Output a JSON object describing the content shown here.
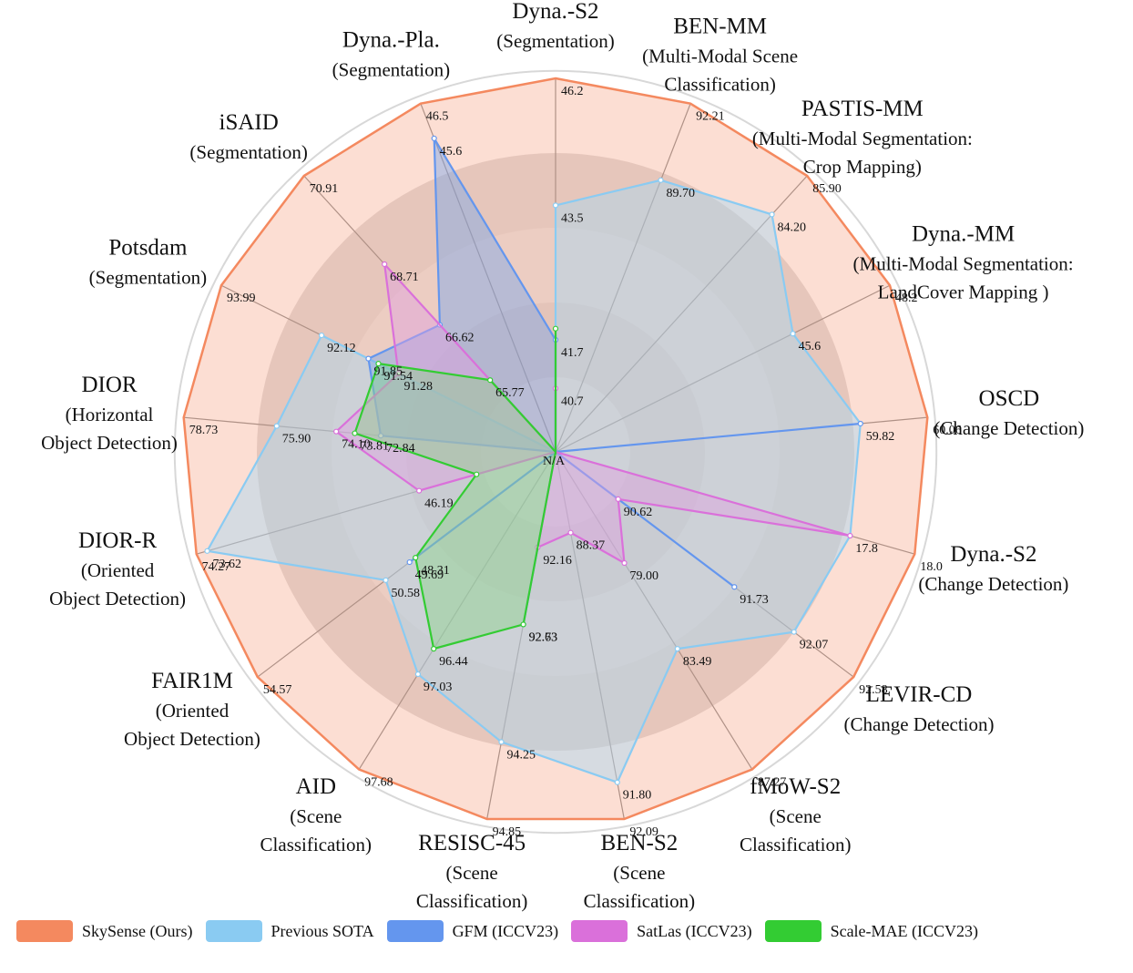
{
  "chart_data": {
    "type": "radar",
    "center_label": "N/A",
    "axes": [
      {
        "name": "Dyna.-S2",
        "task": "(Segmentation)"
      },
      {
        "name": "BEN-MM",
        "task": "(Multi-Modal Scene|Classification)"
      },
      {
        "name": "PASTIS-MM",
        "task": "(Multi-Modal Segmentation:|Crop Mapping)"
      },
      {
        "name": "Dyna.-MM",
        "task": "(Multi-Modal Segmentation:|LandCover Mapping )"
      },
      {
        "name": "OSCD",
        "task": "(Change Detection)"
      },
      {
        "name": "Dyna.-S2",
        "task": "(Change Detection)"
      },
      {
        "name": "LEVIR-CD",
        "task": "(Change Detection)"
      },
      {
        "name": "fMoW-S2",
        "task": "(Scene|Classification)"
      },
      {
        "name": "BEN-S2",
        "task": "(Scene|Classification)"
      },
      {
        "name": "RESISC-45",
        "task": "(Scene|Classification)"
      },
      {
        "name": "AID",
        "task": "(Scene|Classification)"
      },
      {
        "name": "FAIR1M",
        "task": "(Oriented|Object Detection)"
      },
      {
        "name": "DIOR-R",
        "task": "(Oriented|Object Detection)"
      },
      {
        "name": "DIOR",
        "task": "(Horizontal|Object Detection)"
      },
      {
        "name": "Potsdam",
        "task": "(Segmentation)"
      },
      {
        "name": "iSAID",
        "task": "(Segmentation)"
      },
      {
        "name": "Dyna.-Pla.",
        "task": "(Segmentation)"
      }
    ],
    "series": [
      {
        "name": "SkySense (Ours)",
        "color": "#F4895F",
        "fill": "#F9C3AE",
        "values": [
          "46.2",
          "92.21",
          "85.90",
          "48.2",
          "60.06",
          "18.0",
          "92.58",
          "87.27",
          "92.09",
          "94.85",
          "97.68",
          "54.57",
          "74.27",
          "78.73",
          "93.99",
          "70.91",
          "46.5"
        ],
        "r": [
          1,
          1,
          1,
          1,
          1,
          1,
          1,
          1,
          1,
          1,
          1,
          1,
          1,
          1,
          1,
          1,
          1
        ]
      },
      {
        "name": "Previous SOTA",
        "color": "#8ACBF2",
        "fill": "#A9D8F2",
        "values": [
          "43.5",
          "89.70",
          "84.20",
          "45.6",
          "59.82",
          "17.8",
          "92.07",
          "83.49",
          "91.80",
          "94.25",
          "97.03",
          "50.58",
          "73.62",
          "75.90",
          "92.12",
          "",
          ""
        ],
        "r": [
          0.66,
          0.78,
          0.86,
          0.71,
          0.82,
          0.82,
          0.8,
          0.62,
          0.9,
          0.79,
          0.7,
          0.57,
          0.97,
          0.75,
          0.7,
          0,
          0
        ]
      },
      {
        "name": "GFM (ICCV23)",
        "color": "#6496EE",
        "fill": "#7AA6EC",
        "values": [
          "41.7",
          "",
          "",
          "",
          "",
          "",
          "91.73",
          "",
          "",
          "92.73",
          "",
          "49.69",
          "",
          "72.84",
          "91.85",
          "66.62",
          "45.6"
        ],
        "r": [
          0.3,
          0,
          0,
          0,
          0.82,
          0,
          0.6,
          0,
          0,
          0.47,
          0,
          0.49,
          0,
          0.47,
          0.56,
          0.46,
          0.9
        ]
      },
      {
        "name": "SatLas (ICCV23)",
        "color": "#DA70DA",
        "fill": "#DFA0DF",
        "values": [
          "40.7",
          "",
          "",
          "",
          "",
          "",
          "90.62",
          "79.00",
          "88.37",
          "92.16",
          "",
          "",
          "46.19",
          "74.10",
          "91.28",
          "68.71",
          ""
        ],
        "r": [
          0.17,
          0,
          0,
          0,
          0,
          0.82,
          0.21,
          0.35,
          0.22,
          0.26,
          0,
          0,
          0.38,
          0.59,
          0.47,
          0.68,
          0
        ]
      },
      {
        "name": "Scale-MAE (ICCV23)",
        "color": "#33CC33",
        "fill": "#8BD38A",
        "values": [
          "",
          "",
          "",
          "",
          "",
          "",
          "",
          "",
          "",
          "92.63",
          "96.44",
          "48.31",
          "",
          "73.81",
          "91.54",
          "65.77",
          ""
        ],
        "r": [
          0.33,
          0,
          0,
          0,
          0,
          0,
          0,
          0,
          0,
          0.47,
          0.62,
          0.47,
          0.22,
          0.54,
          0.53,
          0.26,
          0
        ]
      }
    ]
  },
  "legend": [
    {
      "label": "SkySense (Ours)",
      "color": "#F4895F"
    },
    {
      "label": "Previous SOTA",
      "color": "#8ACBF2"
    },
    {
      "label": "GFM (ICCV23)",
      "color": "#6496EE"
    },
    {
      "label": "SatLas (ICCV23)",
      "color": "#DA70DA"
    },
    {
      "label": "Scale-MAE (ICCV23)",
      "color": "#33CC33"
    }
  ]
}
